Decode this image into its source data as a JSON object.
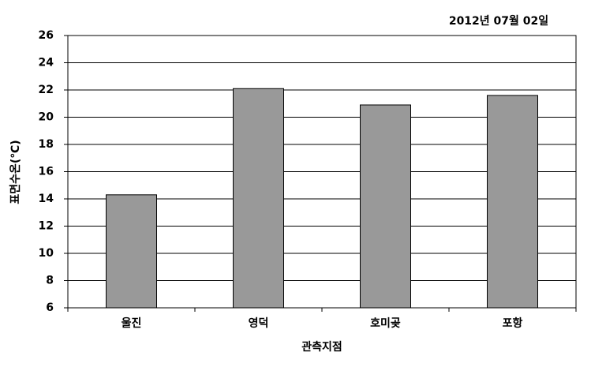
{
  "chart_data": {
    "type": "bar",
    "title": "2012년 07월 02일",
    "y_label": "표면수온(℃)",
    "x_label": "관측지점",
    "categories": [
      "울진",
      "영덕",
      "호미곶",
      "포항"
    ],
    "values": [
      14.3,
      22.1,
      20.9,
      21.6
    ],
    "color": "#999999",
    "ylim": [
      6,
      26
    ],
    "yticks": [
      6,
      8,
      10,
      12,
      14,
      16,
      18,
      20,
      22,
      24,
      26
    ],
    "grid": true
  }
}
